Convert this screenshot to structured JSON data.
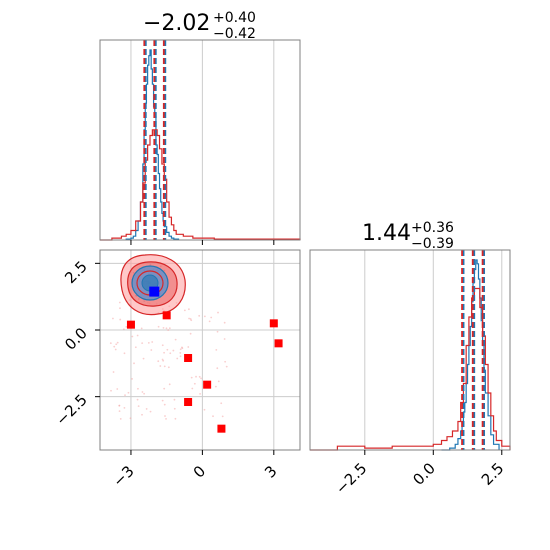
{
  "chart_data": [
    {
      "type": "histogram",
      "panel": "marginal-1",
      "title": {
        "value": "−2.02",
        "plus": "+0.40",
        "minus": "−0.42"
      },
      "xlim": [
        -4.3,
        4.1
      ],
      "xticks": [
        -3,
        0,
        3
      ],
      "tick_labels": [],
      "quantiles_red": [
        -2.44,
        -2.02,
        -1.62
      ],
      "quantiles_blue": [
        -2.44,
        -2.02,
        -1.62
      ],
      "series": [
        {
          "color": "#1f77b4",
          "x": [
            -3.2,
            -3.0,
            -2.9,
            -2.8,
            -2.7,
            -2.6,
            -2.5,
            -2.45,
            -2.4,
            -2.35,
            -2.3,
            -2.25,
            -2.2,
            -2.15,
            -2.1,
            -2.05,
            -2.0,
            -1.95,
            -1.9,
            -1.85,
            -1.8,
            -1.75,
            -1.7,
            -1.65,
            -1.6,
            -1.5,
            -1.4,
            -1.3,
            -1.2,
            -1.0
          ],
          "y": [
            0.005,
            0.01,
            0.02,
            0.05,
            0.1,
            0.2,
            0.4,
            0.58,
            0.72,
            0.82,
            0.92,
            0.97,
            1.0,
            0.9,
            0.82,
            0.7,
            0.65,
            0.5,
            0.45,
            0.35,
            0.27,
            0.2,
            0.14,
            0.1,
            0.07,
            0.04,
            0.02,
            0.01,
            0.005,
            0.0
          ]
        },
        {
          "color": "#d62728",
          "x": [
            -4.3,
            -3.8,
            -3.4,
            -3.2,
            -3.0,
            -2.8,
            -2.6,
            -2.5,
            -2.4,
            -2.3,
            -2.2,
            -2.1,
            -2.0,
            -1.9,
            -1.8,
            -1.7,
            -1.6,
            -1.5,
            -1.4,
            -1.3,
            -1.2,
            -1.1,
            -0.8,
            -0.4,
            0.5,
            2.0,
            4.1
          ],
          "y": [
            0.0,
            0.01,
            0.02,
            0.03,
            0.05,
            0.1,
            0.2,
            0.3,
            0.42,
            0.5,
            0.55,
            0.58,
            0.58,
            0.55,
            0.48,
            0.4,
            0.32,
            0.2,
            0.12,
            0.08,
            0.05,
            0.03,
            0.02,
            0.01,
            0.005,
            0.005,
            0.0
          ]
        }
      ]
    },
    {
      "type": "scatter",
      "panel": "joint",
      "xlim": [
        -4.3,
        4.1
      ],
      "ylim": [
        -4.5,
        3.0
      ],
      "xticks": [
        -3,
        0,
        3
      ],
      "yticks": [
        2.5,
        0.0,
        -2.5
      ],
      "xtick_labels": [
        "−3",
        "0",
        "3"
      ],
      "ytick_labels": [
        "2.5",
        "0.0",
        "−2.5"
      ],
      "center": {
        "x": -2.02,
        "y": 1.44,
        "color": "#0000ff"
      },
      "outliers": {
        "color": "#ff0000",
        "x": [
          -3.0,
          -1.5,
          -0.6,
          0.2,
          -0.6,
          0.8,
          3.0,
          3.2
        ],
        "y": [
          0.2,
          0.55,
          -1.05,
          -2.05,
          -2.7,
          -3.7,
          0.25,
          -0.5
        ]
      }
    },
    {
      "type": "histogram",
      "panel": "marginal-2",
      "title": {
        "value": "1.44",
        "plus": "+0.36",
        "minus": "−0.39"
      },
      "xlim": [
        -4.5,
        2.8
      ],
      "xticks": [
        -2.5,
        0.0,
        2.5
      ],
      "tick_labels": [
        "−2.5",
        "0.0",
        "2.5"
      ],
      "quantiles_red": [
        1.05,
        1.44,
        1.8
      ],
      "quantiles_blue": [
        1.05,
        1.44,
        1.8
      ],
      "series": [
        {
          "color": "#1f77b4",
          "x": [
            0.3,
            0.6,
            0.8,
            0.9,
            1.0,
            1.05,
            1.1,
            1.15,
            1.2,
            1.25,
            1.3,
            1.35,
            1.4,
            1.45,
            1.5,
            1.55,
            1.6,
            1.65,
            1.7,
            1.75,
            1.8,
            1.85,
            1.9,
            2.0,
            2.1,
            2.2,
            2.4
          ],
          "y": [
            0.0,
            0.01,
            0.03,
            0.06,
            0.1,
            0.15,
            0.2,
            0.25,
            0.35,
            0.45,
            0.55,
            0.65,
            0.78,
            0.88,
            0.95,
            1.0,
            0.98,
            0.9,
            0.8,
            0.68,
            0.55,
            0.42,
            0.3,
            0.18,
            0.08,
            0.03,
            0.0
          ]
        },
        {
          "color": "#d62728",
          "x": [
            -4.5,
            -3.5,
            -2.5,
            -1.5,
            -0.5,
            0.0,
            0.3,
            0.5,
            0.7,
            0.9,
            1.0,
            1.1,
            1.2,
            1.3,
            1.4,
            1.5,
            1.6,
            1.7,
            1.8,
            1.9,
            2.0,
            2.1,
            2.2,
            2.3,
            2.5,
            2.8
          ],
          "y": [
            0.0,
            0.02,
            0.01,
            0.02,
            0.02,
            0.03,
            0.05,
            0.07,
            0.1,
            0.15,
            0.25,
            0.35,
            0.55,
            0.7,
            0.8,
            0.85,
            0.85,
            0.75,
            0.6,
            0.45,
            0.3,
            0.18,
            0.1,
            0.05,
            0.02,
            0.0
          ]
        }
      ]
    }
  ]
}
